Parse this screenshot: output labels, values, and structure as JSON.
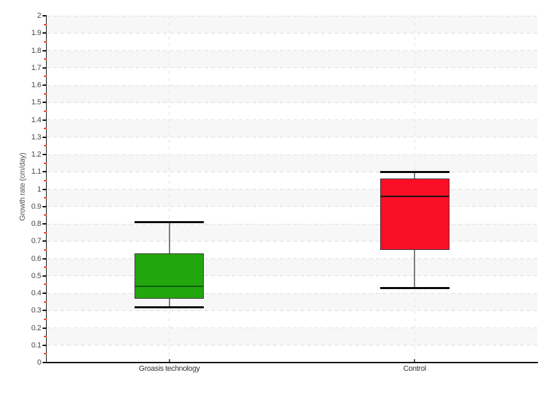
{
  "chart_data": {
    "type": "boxplot",
    "title": "",
    "xlabel": "",
    "ylabel": "Growth rate (cm/day)",
    "ylim": [
      0,
      2
    ],
    "y_major_step": 0.1,
    "y_minor_step": 0.05,
    "y_tick_labels": [
      "0",
      "0.1",
      "0.2",
      "0.3",
      "0.4",
      "0.5",
      "0.6",
      "0.7",
      "0.8",
      "0.9",
      "1",
      "1.1",
      "1.2",
      "1.3",
      "1.4",
      "1.5",
      "1.6",
      "1.7",
      "1.8",
      "1.9",
      "2"
    ],
    "categories": [
      "Groasis technology",
      "Control"
    ],
    "series": [
      {
        "name": "Groasis technology",
        "min": 0.32,
        "q1": 0.37,
        "median": 0.44,
        "q3": 0.63,
        "max": 0.81,
        "fill_color": "#22a60d",
        "median_color": "#0e5c06"
      },
      {
        "name": "Control",
        "min": 0.43,
        "q1": 0.65,
        "median": 0.96,
        "q3": 1.06,
        "max": 1.1,
        "fill_color": "#fa0e26",
        "median_color": "#151515"
      }
    ],
    "grid": {
      "horizontal": "dashed",
      "vertical": "dashed-at-category-centers",
      "background_bands": "alternating gray/white per 0.1"
    },
    "legend_position": "none"
  },
  "colors": {
    "band_gray": "#f7f7f7",
    "h_grid_dash": "#dedede",
    "v_grid_dash": "#e4e4e4",
    "axis": "#111111",
    "tick_label": "#444444",
    "minor_tick_red": "#ee3b22",
    "whisker_stem": "#7a7a7a",
    "whisker_cap": "#0a0a0a",
    "box_border": "#3a3a3a"
  }
}
